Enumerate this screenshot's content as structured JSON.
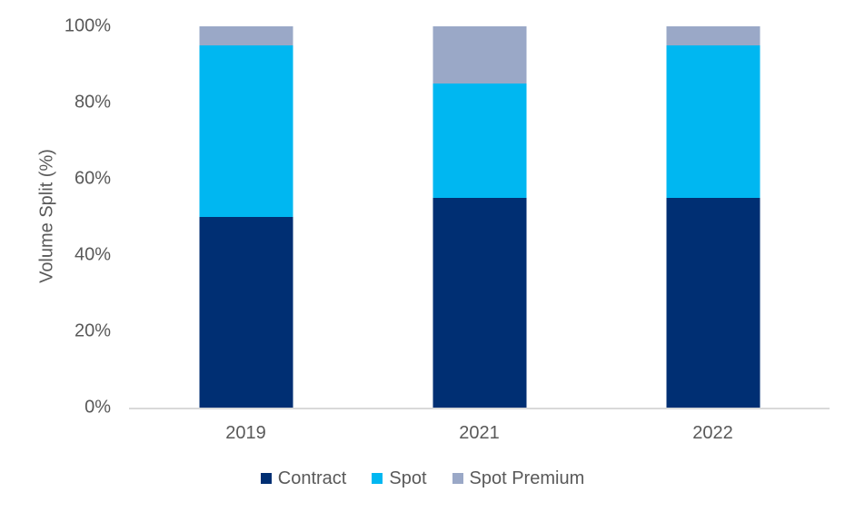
{
  "chart_data": {
    "type": "bar",
    "stacked": true,
    "stacked_mode": "percent",
    "title": "",
    "xlabel": "",
    "ylabel": "Volume Split (%)",
    "categories": [
      "2019",
      "2021",
      "2022"
    ],
    "series": [
      {
        "name": "Contract",
        "color": "#002F73",
        "values": [
          50,
          55,
          55
        ]
      },
      {
        "name": "Spot",
        "color": "#00B7F1",
        "values": [
          45,
          30,
          40
        ]
      },
      {
        "name": "Spot Premium",
        "color": "#9AA8C7",
        "values": [
          5,
          15,
          5
        ]
      }
    ],
    "ylim": [
      0,
      100
    ],
    "ytick_step": 20,
    "ytick_labels": [
      "0%",
      "20%",
      "40%",
      "60%",
      "80%",
      "100%"
    ],
    "grid": false,
    "legend_position": "bottom"
  },
  "colors": {
    "axis_line": "#D9D9D9",
    "text": "#595959",
    "background": "#FFFFFF"
  }
}
